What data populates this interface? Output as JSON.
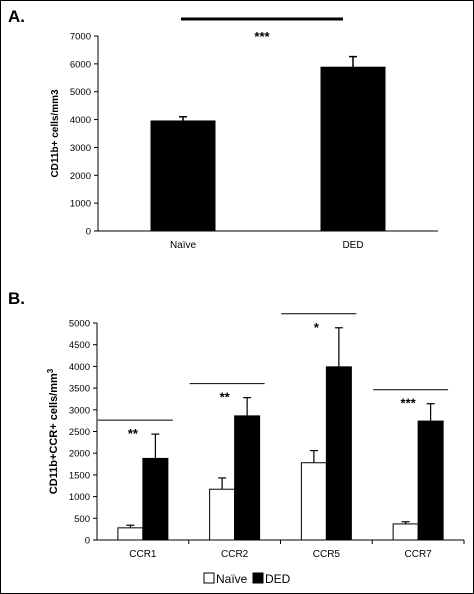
{
  "chart_data": [
    {
      "panel_label": "A.",
      "type": "bar",
      "categories": [
        "Naïve",
        "DED"
      ],
      "values": [
        3950,
        5880
      ],
      "errors": [
        150,
        380
      ],
      "ylabel": "CD11b+ cells/mm3",
      "ylim": [
        0,
        7000
      ],
      "yticks": [
        0,
        1000,
        2000,
        3000,
        4000,
        5000,
        6000,
        7000
      ],
      "significance": [
        {
          "from": "Naïve",
          "to": "DED",
          "label": "***"
        }
      ],
      "colors": {
        "bar": "#000000"
      },
      "grid": false,
      "legend": "none"
    },
    {
      "panel_label": "B.",
      "type": "bar",
      "categories": [
        "CCR1",
        "CCR2",
        "CCR5",
        "CCR7"
      ],
      "series": [
        {
          "name": "Naïve",
          "values": [
            280,
            1170,
            1780,
            370
          ],
          "errors": [
            60,
            260,
            280,
            50
          ],
          "color": "#ffffff"
        },
        {
          "name": "DED",
          "values": [
            1880,
            2860,
            3990,
            2740
          ],
          "errors": [
            560,
            420,
            900,
            400
          ],
          "color": "#000000"
        }
      ],
      "ylabel": "CD11b+CCR+ cells/mm",
      "ylabel_superscript": "3",
      "ylim": [
        0,
        5000
      ],
      "yticks": [
        0,
        500,
        1000,
        1500,
        2000,
        2500,
        3000,
        3500,
        4000,
        4500,
        5000
      ],
      "significance": [
        "**",
        "**",
        "*",
        "***"
      ],
      "grid": false,
      "legend": "bottom"
    }
  ]
}
